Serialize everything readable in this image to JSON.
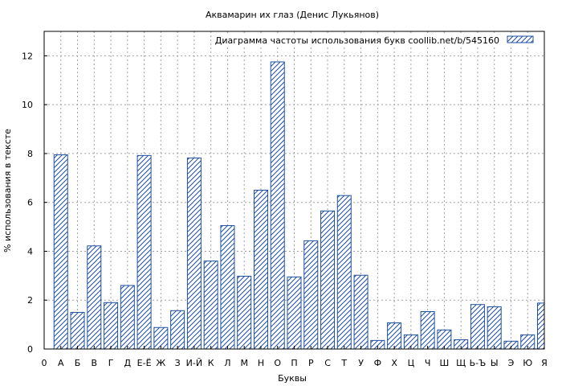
{
  "chart_data": {
    "type": "bar",
    "title": "Аквамарин их глаз (Денис Лукьянов)",
    "xlabel": "Буквы",
    "ylabel": "% использования в тексте",
    "legend_label": "Диаграмма частоты использования букв  coollib.net/b/545160",
    "legend_position": "top-right",
    "grid": true,
    "ylim": [
      0,
      13
    ],
    "yticks": [
      0,
      2,
      4,
      6,
      8,
      10,
      12
    ],
    "categories": [
      "0",
      "А",
      "Б",
      "В",
      "Г",
      "Д",
      "Е-Ё",
      "Ж",
      "З",
      "И-Й",
      "К",
      "Л",
      "М",
      "Н",
      "О",
      "П",
      "Р",
      "С",
      "Т",
      "У",
      "Ф",
      "Х",
      "Ц",
      "Ч",
      "Ш",
      "Щ",
      "Ь-Ъ",
      "Ы",
      "Э",
      "Ю",
      "Я"
    ],
    "values": [
      0,
      7.95,
      1.5,
      4.22,
      1.9,
      2.6,
      7.92,
      0.88,
      1.57,
      7.82,
      3.6,
      5.05,
      2.98,
      6.5,
      11.75,
      2.95,
      4.43,
      5.65,
      6.28,
      3.02,
      0.35,
      1.07,
      0.58,
      1.53,
      0.78,
      0.38,
      1.82,
      1.73,
      0.32,
      0.58,
      1.88
    ],
    "colors": {
      "bar_stroke": "#1f4fa0",
      "hatch": "#1f4fa0"
    }
  }
}
